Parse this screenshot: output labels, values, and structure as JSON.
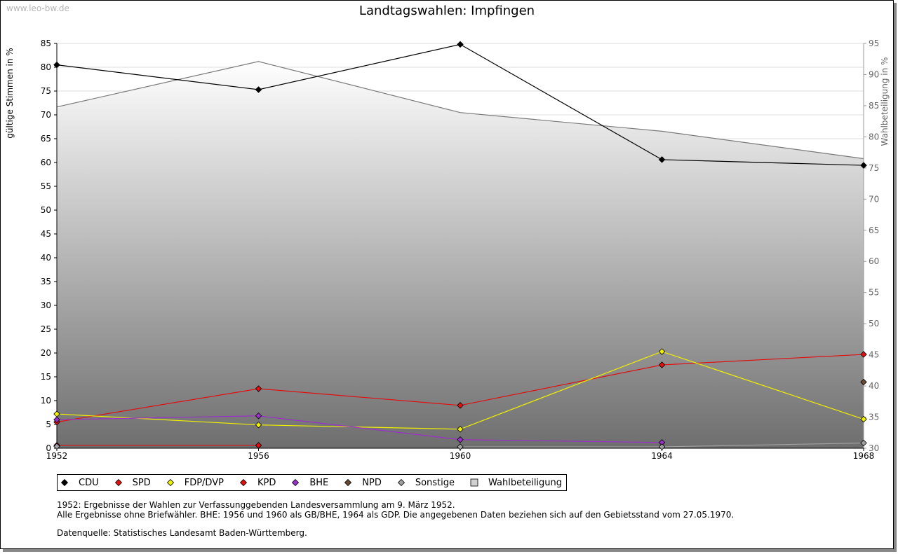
{
  "watermark": "www.leo-bw.de",
  "chart_data": {
    "type": "line",
    "title": "Landtagswahlen: Impfingen",
    "ylabel": "gültige Stimmen in %",
    "y2label": "Wahlbeteiligung in %",
    "x": [
      1952,
      1956,
      1960,
      1964,
      1968
    ],
    "x_tick_labels": [
      "1952",
      "1956",
      "1960",
      "1964",
      "1968"
    ],
    "ylim": [
      0,
      85
    ],
    "y_ticks": [
      0,
      5,
      10,
      15,
      20,
      25,
      30,
      35,
      40,
      45,
      50,
      55,
      60,
      65,
      70,
      75,
      80,
      85
    ],
    "y2lim": [
      30,
      95
    ],
    "y2_ticks": [
      30,
      35,
      40,
      45,
      50,
      55,
      60,
      65,
      70,
      75,
      80,
      85,
      90,
      95
    ],
    "grid": true,
    "series": [
      {
        "name": "CDU",
        "color": "#000000",
        "values": [
          80.5,
          75.3,
          84.8,
          60.6,
          59.4
        ]
      },
      {
        "name": "SPD",
        "color": "#e01010",
        "values": [
          5.5,
          12.5,
          9.0,
          17.5,
          19.7
        ]
      },
      {
        "name": "FDP/DVP",
        "color": "#f0f000",
        "values": [
          7.2,
          4.9,
          4.0,
          20.3,
          6.1
        ]
      },
      {
        "name": "KPD",
        "color": "#e01010",
        "values": [
          0.6,
          0.6,
          null,
          null,
          null
        ]
      },
      {
        "name": "BHE",
        "color": "#9a30c8",
        "values": [
          6.0,
          6.8,
          1.8,
          1.2,
          null
        ]
      },
      {
        "name": "NPD",
        "color": "#6a4a32",
        "values": [
          null,
          null,
          null,
          null,
          13.9
        ]
      },
      {
        "name": "Sonstige",
        "color": "#a0a0a0",
        "values": [
          0.4,
          null,
          0.3,
          0.3,
          1.1
        ]
      }
    ],
    "turnout": {
      "name": "Wahlbeteiligung",
      "axis": "right",
      "values": [
        84.8,
        92.1,
        83.9,
        80.9,
        76.5
      ]
    },
    "legend_position": "bottom-left"
  },
  "notes": {
    "line1": "1952: Ergebnisse der Wahlen zur Verfassunggebenden Landesversammlung am 9. März 1952.",
    "line2": "Alle Ergebnisse ohne Briefwähler. BHE: 1956 und 1960 als GB/BHE, 1964 als GDP. Die angegebenen Daten beziehen sich auf den Gebietsstand vom 27.05.1970.",
    "line3": "Datenquelle: Statistisches Landesamt Baden-Württemberg."
  }
}
